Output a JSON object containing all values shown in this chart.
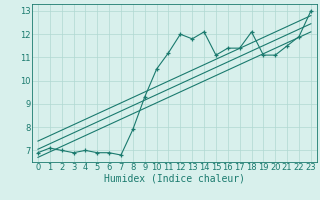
{
  "xlabel": "Humidex (Indice chaleur)",
  "x_data": [
    0,
    1,
    2,
    3,
    4,
    5,
    6,
    7,
    8,
    9,
    10,
    11,
    12,
    13,
    14,
    15,
    16,
    17,
    18,
    19,
    20,
    21,
    22,
    23
  ],
  "y_data": [
    6.9,
    7.1,
    7.0,
    6.9,
    7.0,
    6.9,
    6.9,
    6.8,
    7.9,
    9.3,
    10.5,
    11.2,
    12.0,
    11.8,
    12.1,
    11.1,
    11.4,
    11.4,
    12.1,
    11.1,
    11.1,
    11.5,
    11.9,
    13.0
  ],
  "regression_line": [
    [
      0,
      7.05
    ],
    [
      23,
      12.45
    ]
  ],
  "upper_line": [
    [
      0,
      7.4
    ],
    [
      23,
      12.8
    ]
  ],
  "lower_line": [
    [
      0,
      6.7
    ],
    [
      23,
      12.1
    ]
  ],
  "line_color": "#1a7a6e",
  "bg_color": "#d8f0ec",
  "grid_color": "#b0d8d2",
  "xlim": [
    -0.5,
    23.5
  ],
  "ylim": [
    6.5,
    13.3
  ],
  "yticks": [
    7,
    8,
    9,
    10,
    11,
    12,
    13
  ],
  "xticks": [
    0,
    1,
    2,
    3,
    4,
    5,
    6,
    7,
    8,
    9,
    10,
    11,
    12,
    13,
    14,
    15,
    16,
    17,
    18,
    19,
    20,
    21,
    22,
    23
  ],
  "xlabel_fontsize": 7,
  "tick_fontsize": 6
}
